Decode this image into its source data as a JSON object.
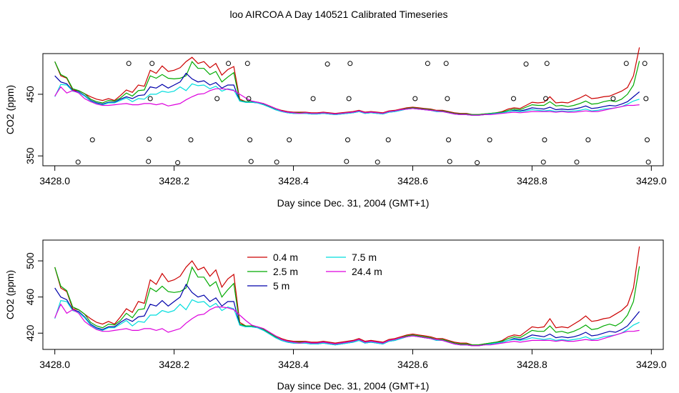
{
  "figure": {
    "title": "loo AIRCOA A  Day 140521  Calibrated Timeseries"
  },
  "chart_data": [
    {
      "type": "line",
      "panel": "top",
      "xlabel": "Day since Dec. 31, 2004 (GMT+1)",
      "ylabel": "CO2 (ppm)",
      "xlim": [
        3427.98,
        3429.02
      ],
      "ylim": [
        334,
        516
      ],
      "xticks": [
        3428.0,
        3428.2,
        3428.4,
        3428.6,
        3428.8,
        3429.0
      ],
      "xtick_labels": [
        "3428.0",
        "3428.2",
        "3428.4",
        "3428.6",
        "3428.8",
        "3429.0"
      ],
      "yticks": [
        350,
        450
      ],
      "ytick_labels": [
        "350",
        "450"
      ],
      "grid": false,
      "legend": "none",
      "colors": [
        "#cc0000",
        "#00aa00",
        "#0000aa",
        "#00dddd",
        "#dd00dd"
      ],
      "series_keys": [
        "0.4m",
        "2.5m",
        "5m",
        "7.5m",
        "24.4m"
      ],
      "points_label": "circles",
      "points": [
        [
          3428.039,
          340
        ],
        [
          3428.063,
          376
        ],
        [
          3428.124,
          500
        ],
        [
          3428.157,
          341
        ],
        [
          3428.158,
          377
        ],
        [
          3428.16,
          443
        ],
        [
          3428.163,
          500
        ],
        [
          3428.206,
          339
        ],
        [
          3428.228,
          376
        ],
        [
          3428.272,
          443
        ],
        [
          3428.291,
          500
        ],
        [
          3428.323,
          500
        ],
        [
          3428.325,
          443
        ],
        [
          3428.327,
          376
        ],
        [
          3428.329,
          341
        ],
        [
          3428.372,
          340
        ],
        [
          3428.393,
          376
        ],
        [
          3428.433,
          443
        ],
        [
          3428.457,
          499
        ],
        [
          3428.489,
          341
        ],
        [
          3428.491,
          376
        ],
        [
          3428.493,
          443
        ],
        [
          3428.495,
          500
        ],
        [
          3428.541,
          340
        ],
        [
          3428.559,
          376
        ],
        [
          3428.604,
          443
        ],
        [
          3428.625,
          500
        ],
        [
          3428.656,
          500
        ],
        [
          3428.658,
          443
        ],
        [
          3428.66,
          376
        ],
        [
          3428.662,
          341
        ],
        [
          3428.708,
          339
        ],
        [
          3428.729,
          376
        ],
        [
          3428.769,
          443
        ],
        [
          3428.79,
          499
        ],
        [
          3428.819,
          340
        ],
        [
          3428.821,
          376
        ],
        [
          3428.823,
          443
        ],
        [
          3428.825,
          500
        ],
        [
          3428.875,
          340
        ],
        [
          3428.894,
          376
        ],
        [
          3428.936,
          443
        ],
        [
          3428.958,
          500
        ],
        [
          3428.989,
          500
        ],
        [
          3428.991,
          443
        ],
        [
          3428.993,
          376
        ],
        [
          3428.995,
          340
        ]
      ]
    },
    {
      "type": "line",
      "panel": "bottom",
      "xlabel": "Day since Dec. 31, 2004 (GMT+1)",
      "ylabel": "CO2 (ppm)",
      "xlim": [
        3427.98,
        3429.02
      ],
      "ylim": [
        402,
        523
      ],
      "xticks": [
        3428.0,
        3428.2,
        3428.4,
        3428.6,
        3428.8,
        3429.0
      ],
      "xtick_labels": [
        "3428.0",
        "3428.2",
        "3428.4",
        "3428.6",
        "3428.8",
        "3429.0"
      ],
      "yticks": [
        420,
        460,
        500
      ],
      "ytick_labels": [
        "420",
        "460",
        "500"
      ],
      "grid": false,
      "legend": "top-left",
      "x": [
        3428.0,
        3428.01,
        3428.02,
        3428.03,
        3428.04,
        3428.05,
        3428.06,
        3428.07,
        3428.08,
        3428.09,
        3428.1,
        3428.11,
        3428.12,
        3428.13,
        3428.14,
        3428.15,
        3428.16,
        3428.17,
        3428.18,
        3428.19,
        3428.2,
        3428.21,
        3428.22,
        3428.23,
        3428.24,
        3428.25,
        3428.26,
        3428.27,
        3428.28,
        3428.29,
        3428.3,
        3428.31,
        3428.32,
        3428.33,
        3428.34,
        3428.35,
        3428.36,
        3428.37,
        3428.38,
        3428.39,
        3428.4,
        3428.41,
        3428.42,
        3428.43,
        3428.44,
        3428.45,
        3428.46,
        3428.47,
        3428.48,
        3428.49,
        3428.5,
        3428.51,
        3428.52,
        3428.53,
        3428.54,
        3428.55,
        3428.56,
        3428.57,
        3428.58,
        3428.59,
        3428.6,
        3428.61,
        3428.62,
        3428.63,
        3428.64,
        3428.65,
        3428.66,
        3428.67,
        3428.68,
        3428.69,
        3428.7,
        3428.71,
        3428.72,
        3428.73,
        3428.74,
        3428.75,
        3428.76,
        3428.77,
        3428.78,
        3428.79,
        3428.8,
        3428.81,
        3428.82,
        3428.83,
        3428.84,
        3428.85,
        3428.86,
        3428.87,
        3428.88,
        3428.89,
        3428.9,
        3428.91,
        3428.92,
        3428.93,
        3428.94,
        3428.95,
        3428.96,
        3428.97,
        3428.98
      ],
      "series": [
        {
          "key": "0.4m",
          "name": "0.4 m",
          "color": "#cc0000",
          "values": [
            493,
            470,
            466,
            447,
            446,
            441,
            436,
            432,
            430,
            433,
            430,
            438,
            447,
            443,
            455,
            453,
            479,
            474,
            486,
            477,
            479,
            483,
            493,
            500,
            490,
            493,
            483,
            490,
            471,
            480,
            485,
            432,
            428,
            428,
            427,
            425,
            421,
            417,
            414,
            412,
            411,
            411,
            411,
            410,
            410,
            411,
            410,
            409,
            410,
            411,
            412,
            414,
            411,
            412,
            411,
            410,
            413,
            414,
            416,
            418,
            419,
            418,
            417,
            416,
            414,
            414,
            412,
            410,
            409,
            409,
            407,
            407,
            408,
            409,
            410,
            412,
            416,
            418,
            417,
            422,
            427,
            426,
            427,
            436,
            426,
            427,
            426,
            430,
            434,
            439,
            433,
            434,
            436,
            437,
            441,
            445,
            451,
            470,
            516
          ]
        },
        {
          "key": "2.5m",
          "name": "2.5 m",
          "color": "#00aa00",
          "values": [
            493,
            472,
            467,
            449,
            446,
            441,
            432,
            428,
            426,
            430,
            429,
            434,
            442,
            437,
            446,
            447,
            470,
            466,
            472,
            466,
            465,
            466,
            470,
            493,
            482,
            482,
            472,
            477,
            460,
            468,
            475,
            430,
            428,
            428,
            427,
            424,
            420,
            416,
            413,
            411,
            410,
            410,
            410,
            409,
            409,
            410,
            409,
            408,
            409,
            410,
            411,
            413,
            410,
            411,
            410,
            409,
            412,
            413,
            415,
            417,
            418,
            417,
            416,
            415,
            413,
            413,
            411,
            409,
            408,
            408,
            407,
            407,
            408,
            409,
            410,
            411,
            414,
            416,
            415,
            419,
            423,
            422,
            422,
            428,
            421,
            422,
            420,
            422,
            425,
            429,
            424,
            425,
            428,
            430,
            428,
            432,
            440,
            455,
            494
          ]
        },
        {
          "key": "5m",
          "name": "5 m",
          "color": "#0000aa",
          "values": [
            470,
            460,
            457,
            446,
            444,
            438,
            430,
            426,
            424,
            427,
            427,
            432,
            436,
            433,
            438,
            439,
            452,
            450,
            456,
            450,
            455,
            460,
            474,
            465,
            460,
            462,
            455,
            459,
            450,
            455,
            455,
            429,
            427,
            427,
            426,
            423,
            419,
            415,
            412,
            410,
            409,
            409,
            409,
            408,
            408,
            409,
            408,
            407,
            408,
            409,
            410,
            412,
            409,
            410,
            409,
            408,
            411,
            412,
            414,
            416,
            417,
            416,
            415,
            414,
            412,
            412,
            410,
            408,
            407,
            407,
            406,
            406,
            407,
            408,
            409,
            410,
            412,
            414,
            413,
            415,
            418,
            417,
            416,
            419,
            415,
            416,
            415,
            416,
            418,
            421,
            417,
            418,
            420,
            422,
            421,
            424,
            428,
            436,
            444
          ]
        },
        {
          "key": "7.5m",
          "name": "7.5 m",
          "color": "#00dddd",
          "values": [
            436,
            456,
            455,
            445,
            443,
            437,
            429,
            425,
            423,
            426,
            426,
            430,
            434,
            428,
            433,
            432,
            440,
            440,
            445,
            443,
            445,
            452,
            446,
            457,
            454,
            455,
            449,
            453,
            445,
            449,
            447,
            429,
            427,
            427,
            426,
            423,
            419,
            415,
            412,
            410,
            409,
            409,
            409,
            408,
            408,
            409,
            408,
            407,
            408,
            409,
            410,
            412,
            409,
            410,
            409,
            408,
            411,
            412,
            414,
            416,
            417,
            416,
            415,
            414,
            412,
            412,
            410,
            408,
            407,
            407,
            406,
            406,
            407,
            408,
            409,
            410,
            412,
            413,
            412,
            413,
            415,
            414,
            413,
            414,
            412,
            413,
            412,
            413,
            414,
            416,
            413,
            414,
            416,
            417,
            418,
            420,
            424,
            429,
            432
          ]
        },
        {
          "key": "24.4m",
          "name": "24.4 m",
          "color": "#dd00dd",
          "values": [
            437,
            452,
            442,
            446,
            442,
            433,
            428,
            424,
            422,
            422,
            423,
            424,
            425,
            423,
            423,
            425,
            425,
            423,
            425,
            421,
            423,
            425,
            431,
            436,
            440,
            441,
            446,
            449,
            449,
            448,
            446,
            440,
            434,
            429,
            427,
            425,
            421,
            417,
            413,
            411,
            410,
            409,
            410,
            409,
            409,
            410,
            409,
            408,
            409,
            410,
            411,
            413,
            410,
            411,
            410,
            409,
            412,
            413,
            415,
            416,
            417,
            416,
            415,
            414,
            413,
            412,
            410,
            408,
            407,
            407,
            406,
            406,
            407,
            407,
            408,
            409,
            410,
            411,
            410,
            411,
            412,
            412,
            412,
            412,
            411,
            412,
            411,
            411,
            412,
            413,
            412,
            412,
            414,
            416,
            418,
            420,
            422,
            422,
            423
          ]
        }
      ]
    }
  ]
}
